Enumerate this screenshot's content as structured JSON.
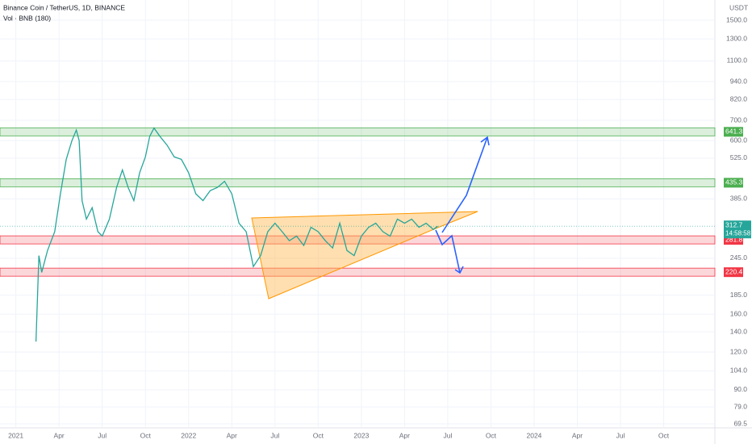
{
  "chart_data": {
    "type": "line",
    "title": "Binance Coin / TetherUS, 1D, BINANCE",
    "subtitle": "Vol · BNB (180)",
    "currency": "USDT",
    "log_y": true,
    "color": "#26a69a",
    "ylim": [
      69.5,
      1500
    ],
    "yticks": [
      {
        "value": 1500,
        "label": "1500.0"
      },
      {
        "value": 1300,
        "label": "1300.0"
      },
      {
        "value": 1100,
        "label": "1100.0"
      },
      {
        "value": 940,
        "label": "940.0"
      },
      {
        "value": 820,
        "label": "820.0"
      },
      {
        "value": 700,
        "label": "700.0"
      },
      {
        "value": 600,
        "label": "600.0"
      },
      {
        "value": 525,
        "label": "525.0"
      },
      {
        "value": 385,
        "label": "385.0"
      },
      {
        "value": 245,
        "label": "245.0"
      },
      {
        "value": 185,
        "label": "185.0"
      },
      {
        "value": 160,
        "label": "160.0"
      },
      {
        "value": 140,
        "label": "140.0"
      },
      {
        "value": 120,
        "label": "120.0"
      },
      {
        "value": 104,
        "label": "104.0"
      },
      {
        "value": 90,
        "label": "90.0"
      },
      {
        "value": 79,
        "label": "79.0"
      },
      {
        "value": 69.5,
        "label": "69.5"
      }
    ],
    "xlim": [
      -1.1,
      48.5
    ],
    "xticks": [
      {
        "value": 0,
        "label": "2021"
      },
      {
        "value": 3,
        "label": "Apr"
      },
      {
        "value": 6,
        "label": "Jul"
      },
      {
        "value": 9,
        "label": "Oct"
      },
      {
        "value": 12,
        "label": "2022"
      },
      {
        "value": 15,
        "label": "Apr"
      },
      {
        "value": 18,
        "label": "Jul"
      },
      {
        "value": 21,
        "label": "Oct"
      },
      {
        "value": 24,
        "label": "2023"
      },
      {
        "value": 27,
        "label": "Apr"
      },
      {
        "value": 30,
        "label": "Jul"
      },
      {
        "value": 33,
        "label": "Oct"
      },
      {
        "value": 36,
        "label": "2024"
      },
      {
        "value": 39,
        "label": "Apr"
      },
      {
        "value": 42,
        "label": "Jul"
      },
      {
        "value": 45,
        "label": "Oct"
      }
    ],
    "x": [
      1.4,
      1.6,
      1.8,
      2.2,
      2.7,
      3.1,
      3.5,
      3.9,
      4.2,
      4.4,
      4.6,
      4.9,
      5.3,
      5.7,
      6.0,
      6.5,
      7.0,
      7.4,
      7.8,
      8.2,
      8.6,
      9.0,
      9.3,
      9.6,
      10.0,
      10.5,
      11.0,
      11.5,
      12.0,
      12.5,
      13.0,
      13.5,
      14.0,
      14.5,
      15.0,
      15.5,
      16.0,
      16.5,
      17.0,
      17.5,
      18.0,
      18.5,
      19.0,
      19.5,
      20.0,
      20.5,
      21.0,
      21.5,
      22.0,
      22.5,
      23.0,
      23.5,
      24.0,
      24.5,
      25.0,
      25.5,
      26.0,
      26.5,
      27.0,
      27.5,
      28.0,
      28.5,
      29.0,
      29.3
    ],
    "values": [
      130,
      250,
      220,
      260,
      300,
      400,
      520,
      600,
      650,
      600,
      380,
      330,
      360,
      300,
      290,
      330,
      420,
      480,
      420,
      380,
      470,
      530,
      620,
      660,
      620,
      580,
      530,
      520,
      470,
      400,
      380,
      410,
      420,
      440,
      400,
      320,
      300,
      230,
      250,
      300,
      320,
      300,
      280,
      290,
      270,
      310,
      300,
      280,
      265,
      320,
      260,
      250,
      290,
      310,
      320,
      300,
      290,
      330,
      320,
      330,
      310,
      320,
      305,
      312.7
    ],
    "levels": [
      {
        "value": 641.3,
        "label": "641.3",
        "color": "#4caf50"
      },
      {
        "value": 435.3,
        "label": "435.3",
        "color": "#4caf50"
      },
      {
        "value": 281.8,
        "label": "281.8",
        "color": "#f23645"
      },
      {
        "value": 220.4,
        "label": "220.4",
        "color": "#f23645"
      }
    ],
    "last_price": {
      "value": 312.7,
      "label": "312.7",
      "countdown": "14:58:58",
      "color": "#26a69a"
    }
  }
}
